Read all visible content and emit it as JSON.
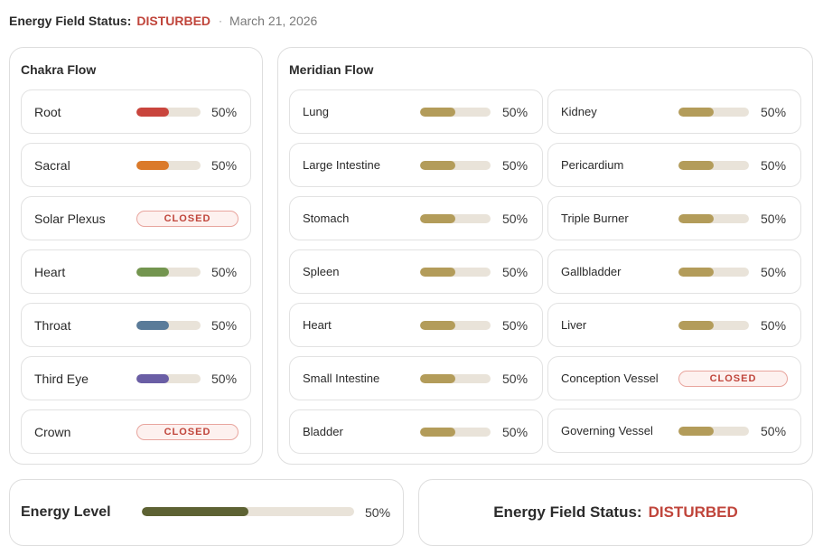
{
  "header": {
    "label": "Energy Field Status:",
    "status": "DISTURBED",
    "separator": "·",
    "date": "March 21, 2026"
  },
  "colors": {
    "alert": "#c0453b",
    "track": "#e9e3d9",
    "meridian_fill": "#b39c5a",
    "energy_fill": "#5d6233"
  },
  "chakra": {
    "title": "Chakra Flow",
    "items": [
      {
        "name": "Root",
        "percent_label": "50%",
        "level": 0.5,
        "color": "#c9453d",
        "closed": false
      },
      {
        "name": "Sacral",
        "percent_label": "50%",
        "level": 0.5,
        "color": "#db7a2a",
        "closed": false
      },
      {
        "name": "Solar Plexus",
        "closed": true,
        "closed_label": "CLOSED"
      },
      {
        "name": "Heart",
        "percent_label": "50%",
        "level": 0.5,
        "color": "#73954f",
        "closed": false
      },
      {
        "name": "Throat",
        "percent_label": "50%",
        "level": 0.5,
        "color": "#5a7b99",
        "closed": false
      },
      {
        "name": "Third Eye",
        "percent_label": "50%",
        "level": 0.5,
        "color": "#6a5ea5",
        "closed": false
      },
      {
        "name": "Crown",
        "closed": true,
        "closed_label": "CLOSED"
      }
    ]
  },
  "meridian": {
    "title": "Meridian Flow",
    "left": [
      {
        "name": "Lung",
        "percent_label": "50%",
        "level": 0.5,
        "closed": false
      },
      {
        "name": "Large Intestine",
        "percent_label": "50%",
        "level": 0.5,
        "closed": false
      },
      {
        "name": "Stomach",
        "percent_label": "50%",
        "level": 0.5,
        "closed": false
      },
      {
        "name": "Spleen",
        "percent_label": "50%",
        "level": 0.5,
        "closed": false
      },
      {
        "name": "Heart",
        "percent_label": "50%",
        "level": 0.5,
        "closed": false
      },
      {
        "name": "Small Intestine",
        "percent_label": "50%",
        "level": 0.5,
        "closed": false
      },
      {
        "name": "Bladder",
        "percent_label": "50%",
        "level": 0.5,
        "closed": false
      }
    ],
    "right": [
      {
        "name": "Kidney",
        "percent_label": "50%",
        "level": 0.5,
        "closed": false
      },
      {
        "name": "Pericardium",
        "percent_label": "50%",
        "level": 0.5,
        "closed": false
      },
      {
        "name": "Triple Burner",
        "percent_label": "50%",
        "level": 0.5,
        "closed": false
      },
      {
        "name": "Gallbladder",
        "percent_label": "50%",
        "level": 0.5,
        "closed": false
      },
      {
        "name": "Liver",
        "percent_label": "50%",
        "level": 0.5,
        "closed": false
      },
      {
        "name": "Conception Vessel",
        "closed": true,
        "closed_label": "CLOSED"
      },
      {
        "name": "Governing Vessel",
        "percent_label": "50%",
        "level": 0.5,
        "closed": false
      }
    ]
  },
  "energy": {
    "title": "Energy Level",
    "percent_label": "50%",
    "level": 0.5
  },
  "status_card": {
    "label": "Energy Field Status:",
    "value": "DISTURBED"
  }
}
